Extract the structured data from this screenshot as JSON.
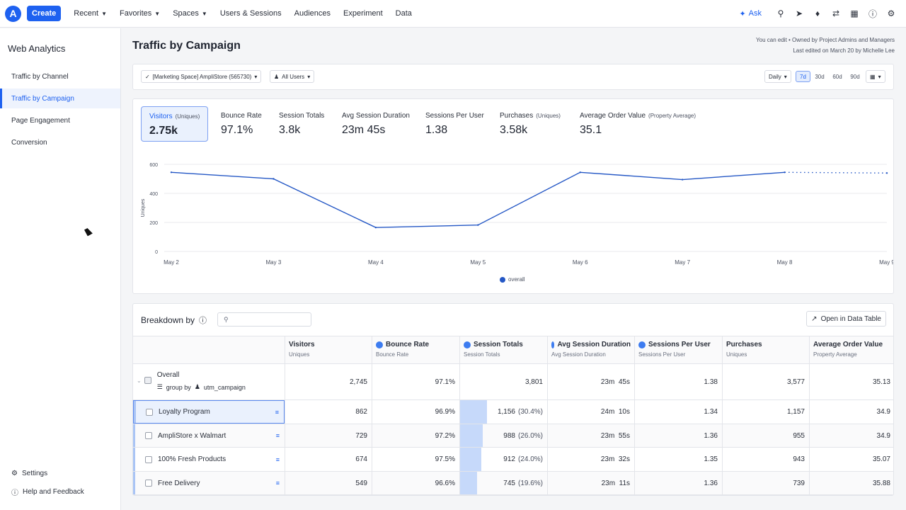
{
  "topnav": {
    "logo_letter": "A",
    "create": "Create",
    "items": [
      "Recent",
      "Favorites",
      "Spaces",
      "Users & Sessions",
      "Audiences",
      "Experiment",
      "Data"
    ],
    "ask": "Ask"
  },
  "sidebar": {
    "title": "Web Analytics",
    "items": [
      "Traffic by Channel",
      "Traffic by Campaign",
      "Page Engagement",
      "Conversion"
    ],
    "active_index": 1,
    "settings": "Settings",
    "help": "Help and Feedback"
  },
  "page": {
    "title": "Traffic by Campaign",
    "meta_line1": "You can edit • Owned by Project Admins and Managers",
    "meta_line2": "Last edited on March 20 by Michelle Lee"
  },
  "filters": {
    "project": "[Marketing Space] AmpliStore (565730)",
    "segment": "All Users",
    "interval": "Daily",
    "ranges": [
      "7d",
      "30d",
      "60d",
      "90d"
    ],
    "active_range": "7d"
  },
  "metrics": [
    {
      "label": "Visitors",
      "sub": "(Uniques)",
      "value": "2.75k"
    },
    {
      "label": "Bounce Rate",
      "sub": "",
      "value": "97.1%"
    },
    {
      "label": "Session Totals",
      "sub": "",
      "value": "3.8k"
    },
    {
      "label": "Avg Session Duration",
      "sub": "",
      "value": "23m 45s"
    },
    {
      "label": "Sessions Per User",
      "sub": "",
      "value": "1.38"
    },
    {
      "label": "Purchases",
      "sub": "(Uniques)",
      "value": "3.58k"
    },
    {
      "label": "Average Order Value",
      "sub": "(Property Average)",
      "value": "35.1"
    }
  ],
  "chart_data": {
    "type": "line",
    "x": [
      "May 2",
      "May 3",
      "May 4",
      "May 5",
      "May 6",
      "May 7",
      "May 8",
      "May 9"
    ],
    "series": [
      {
        "name": "overall",
        "values": [
          545,
          500,
          165,
          182,
          545,
          495,
          545,
          540
        ]
      }
    ],
    "ylabel": "Uniques",
    "yticks": [
      0,
      200,
      400,
      600
    ],
    "ylim": [
      0,
      600
    ],
    "incomplete_from_index": 6,
    "color": "#2457c5",
    "grid": true,
    "legend": "bottom-center"
  },
  "breakdown": {
    "title": "Breakdown by",
    "open_table": "Open in Data Table",
    "columns": [
      {
        "name": "Visitors",
        "sub": "Uniques",
        "icon": false
      },
      {
        "name": "Bounce Rate",
        "sub": "Bounce Rate",
        "icon": true
      },
      {
        "name": "Session Totals",
        "sub": "Session Totals",
        "icon": true
      },
      {
        "name": "Avg Session Duration",
        "sub": "Avg Session Duration",
        "icon": true
      },
      {
        "name": "Sessions Per User",
        "sub": "Sessions Per User",
        "icon": true
      },
      {
        "name": "Purchases",
        "sub": "Uniques",
        "icon": false
      },
      {
        "name": "Average Order Value",
        "sub": "Property Average",
        "icon": false
      }
    ],
    "overall": {
      "label": "Overall",
      "group_by": "group by",
      "group_prop": "utm_campaign",
      "values": [
        "2,745",
        "97.1%",
        "3,801",
        "23m  45s",
        "1.38",
        "3,577",
        "35.13"
      ]
    },
    "rows": [
      {
        "name": "Loyalty Program",
        "visitors": "862",
        "bounce": "96.9%",
        "sessions": "1,156",
        "share": "(30.4%)",
        "share_fraction": 0.304,
        "duration": "24m  10s",
        "spu": "1.34",
        "purchases": "1,157",
        "aov": "34.9"
      },
      {
        "name": "AmpliStore x Walmart",
        "visitors": "729",
        "bounce": "97.2%",
        "sessions": "988",
        "share": "(26.0%)",
        "share_fraction": 0.26,
        "duration": "23m  55s",
        "spu": "1.36",
        "purchases": "955",
        "aov": "34.9"
      },
      {
        "name": "100% Fresh Products",
        "visitors": "674",
        "bounce": "97.5%",
        "sessions": "912",
        "share": "(24.0%)",
        "share_fraction": 0.24,
        "duration": "23m  32s",
        "spu": "1.35",
        "purchases": "943",
        "aov": "35.07"
      },
      {
        "name": "Free Delivery",
        "visitors": "549",
        "bounce": "96.6%",
        "sessions": "745",
        "share": "(19.6%)",
        "share_fraction": 0.196,
        "duration": "23m  11s",
        "spu": "1.36",
        "purchases": "739",
        "aov": "35.88"
      }
    ]
  }
}
